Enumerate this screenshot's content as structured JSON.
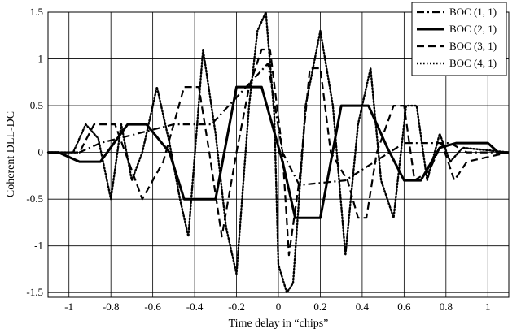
{
  "chart_data": {
    "type": "line",
    "xlabel": "Time delay in “chips”",
    "ylabel": "Coherent DLL-DC",
    "xlim": [
      -1.1,
      1.1
    ],
    "ylim": [
      -1.55,
      1.5
    ],
    "x_ticks": [
      -1,
      -0.8,
      -0.6,
      -0.4,
      -0.2,
      0,
      0.2,
      0.4,
      0.6,
      0.8,
      1
    ],
    "x_tick_labels": [
      "-1",
      "-0.8",
      "-0.6",
      "-0.4",
      "-0.2",
      "0",
      "0.2",
      "0.4",
      "0.6",
      "0.8",
      "1"
    ],
    "y_ticks": [
      -1.5,
      -1,
      -0.5,
      0,
      0.5,
      1,
      1.5
    ],
    "y_tick_labels": [
      "-1.5",
      "-1",
      "-0.5",
      "0",
      "0.5",
      "1",
      "1.5"
    ],
    "grid": true,
    "legend_position": "top-right",
    "series": [
      {
        "name": "BOC (1, 1)",
        "dash": "dashdot",
        "x": [
          -1.1,
          -0.95,
          -0.85,
          -0.5,
          -0.32,
          -0.05,
          0.02,
          0.1,
          0.32,
          0.6,
          0.82,
          0.9,
          1.1
        ],
        "y": [
          0,
          0,
          0.1,
          0.3,
          0.3,
          0.95,
          0,
          -0.35,
          -0.3,
          0.1,
          0.1,
          0,
          0
        ]
      },
      {
        "name": "BOC (2, 1)",
        "dash": "solid",
        "x": [
          -1.1,
          -1.05,
          -0.95,
          -0.85,
          -0.72,
          -0.63,
          -0.52,
          -0.45,
          -0.3,
          -0.2,
          -0.08,
          0.02,
          0.08,
          0.2,
          0.3,
          0.43,
          0.52,
          0.6,
          0.68,
          0.77,
          0.85,
          0.93,
          1.0,
          1.05,
          1.1
        ],
        "y": [
          0,
          0,
          -0.1,
          -0.1,
          0.3,
          0.3,
          0,
          -0.5,
          -0.5,
          0.7,
          0.7,
          -0.1,
          -0.7,
          -0.7,
          0.5,
          0.5,
          0.05,
          -0.3,
          -0.3,
          0.05,
          0.1,
          0.1,
          0.1,
          0,
          0
        ]
      },
      {
        "name": "BOC (3, 1)",
        "dash": "dashed",
        "x": [
          -1.1,
          -0.95,
          -0.88,
          -0.78,
          -0.65,
          -0.55,
          -0.45,
          -0.38,
          -0.33,
          -0.27,
          -0.2,
          -0.14,
          -0.08,
          -0.04,
          0.02,
          0.05,
          0.1,
          0.15,
          0.2,
          0.25,
          0.33,
          0.38,
          0.42,
          0.47,
          0.55,
          0.6,
          0.65,
          0.72,
          0.78,
          0.84,
          0.9,
          1.1
        ],
        "y": [
          0,
          0,
          0.3,
          0.3,
          -0.5,
          -0.1,
          0.7,
          0.7,
          0.0,
          -0.9,
          0.0,
          0.7,
          1.1,
          1.1,
          0.0,
          -1.1,
          -0.3,
          0.9,
          0.9,
          0.0,
          -0.3,
          -0.7,
          -0.7,
          0.0,
          0.5,
          0.5,
          -0.3,
          -0.2,
          0.1,
          -0.3,
          -0.1,
          0
        ]
      },
      {
        "name": "BOC (4, 1)",
        "dash": "dotted",
        "x": [
          -1.1,
          -0.98,
          -0.92,
          -0.86,
          -0.8,
          -0.75,
          -0.7,
          -0.65,
          -0.58,
          -0.52,
          -0.47,
          -0.43,
          -0.36,
          -0.3,
          -0.25,
          -0.2,
          -0.14,
          -0.1,
          -0.06,
          -0.02,
          0.0,
          0.04,
          0.07,
          0.13,
          0.2,
          0.26,
          0.32,
          0.38,
          0.44,
          0.49,
          0.55,
          0.61,
          0.66,
          0.71,
          0.77,
          0.82,
          0.88,
          1.1
        ],
        "y": [
          0,
          0,
          0.3,
          0.15,
          -0.5,
          0.3,
          -0.3,
          0.0,
          0.7,
          0.1,
          -0.5,
          -0.9,
          1.1,
          0.2,
          -0.8,
          -1.3,
          0.5,
          1.3,
          1.5,
          0.4,
          -1.2,
          -1.5,
          -1.4,
          0.5,
          1.3,
          0.5,
          -1.1,
          0.3,
          0.9,
          -0.3,
          -0.7,
          0.5,
          0.5,
          -0.3,
          0.2,
          -0.1,
          0.05,
          0
        ]
      }
    ]
  }
}
